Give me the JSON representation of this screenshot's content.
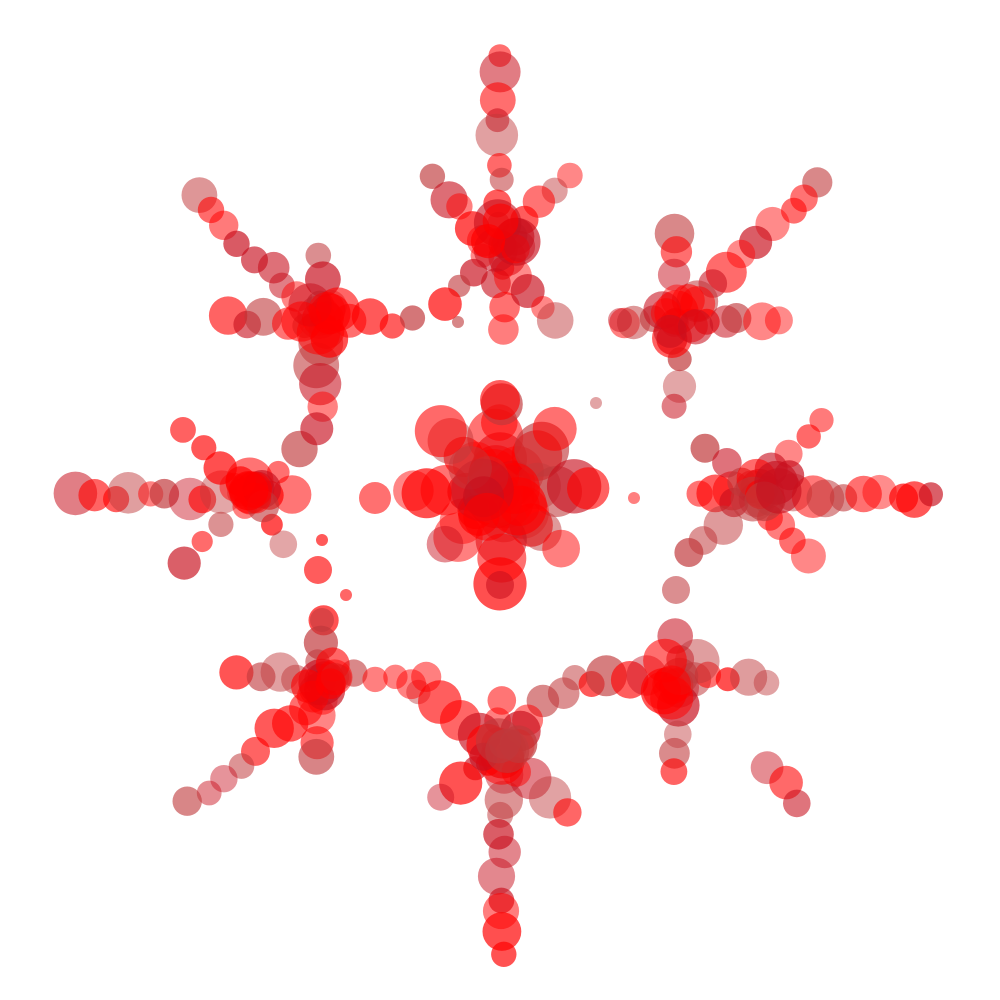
{
  "artwork": {
    "subject": "snowflake-of-translucent-circles",
    "colors": {
      "background": "#ffffff",
      "primary": "#ff0000",
      "dark": "#c8101e",
      "muted": "#c0393b"
    },
    "arm_count": 8
  }
}
